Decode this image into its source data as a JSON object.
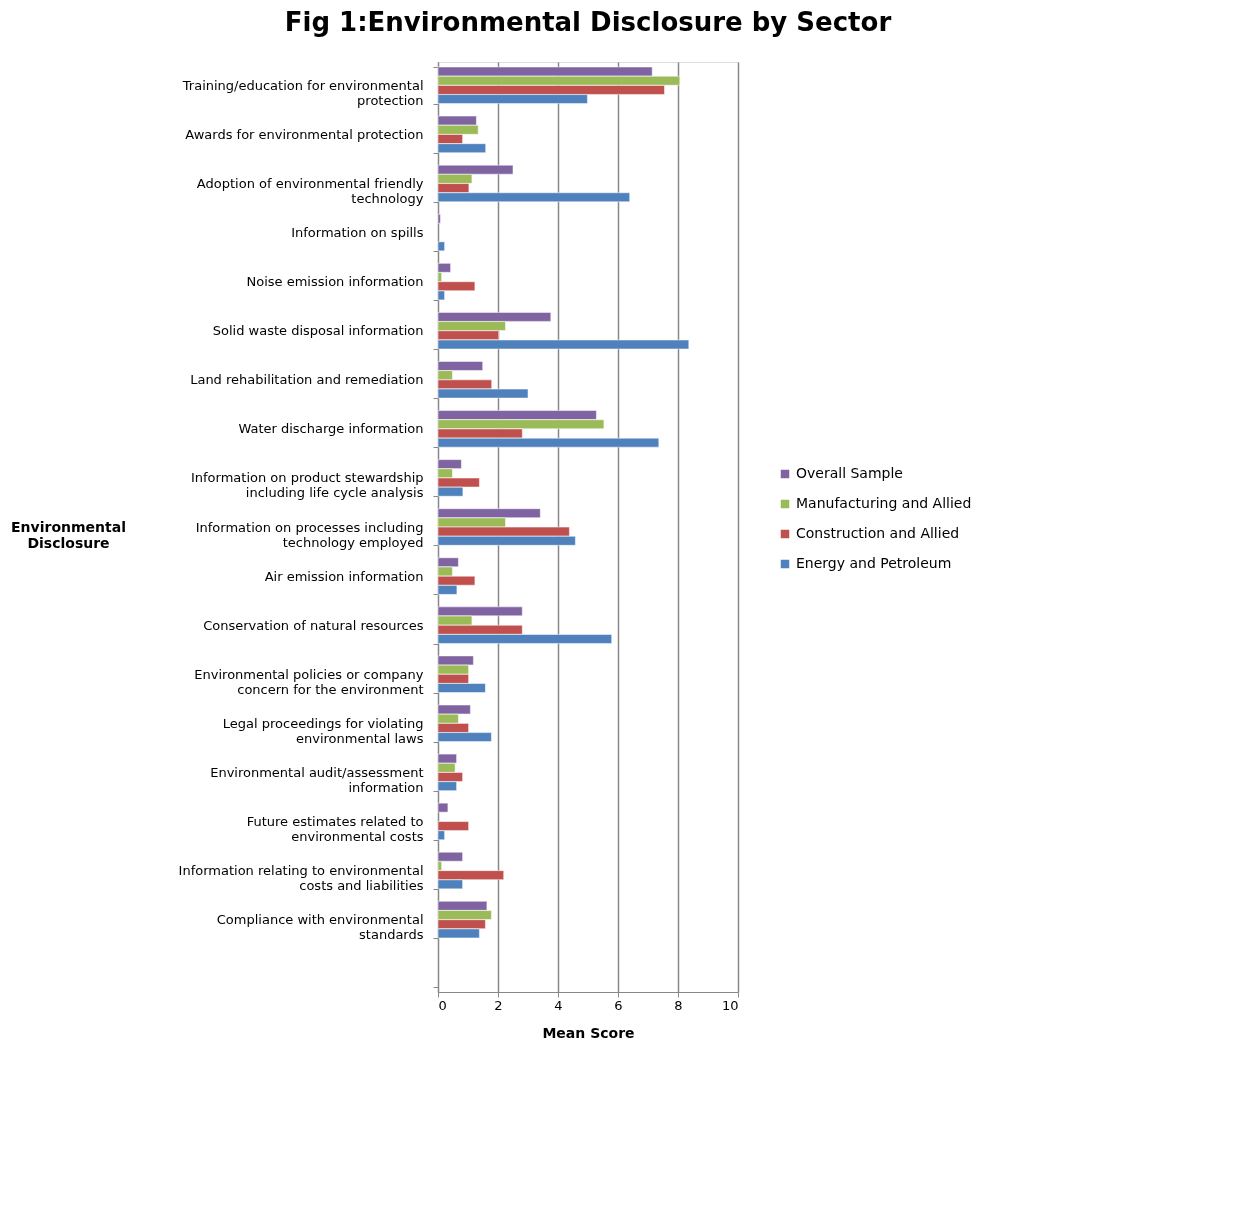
{
  "chart_data": {
    "type": "bar",
    "orientation": "horizontal",
    "title": "Fig 1:Environmental Disclosure by Sector",
    "xlabel": "Mean Score",
    "ylabel": "Environmental Disclosure",
    "categories": [
      "Training/education for environmental protection",
      "Awards for environmental protection",
      "Adoption of environmental friendly technology",
      "Information on spills",
      "Noise emission information",
      "Solid waste disposal information",
      "Land rehabilitation and remediation",
      "Water discharge information",
      "Information on product stewardship including life cycle analysis",
      "Information on processes including technology employed",
      "Air emission information",
      "Conservation of natural resources",
      "Environmental policies or company concern for the environment",
      "Legal proceedings for violating environmental laws",
      "Environmental audit/assessment information",
      "Future estimates related to environmental costs",
      "Information relating to environmental costs and liabilities",
      "Compliance with environmental standards",
      null
    ],
    "series": [
      {
        "name": "Overall Sample",
        "color": "#8064a2",
        "values": [
          7.14,
          1.28,
          2.5,
          0.08,
          0.42,
          3.76,
          1.49,
          5.28,
          0.78,
          3.41,
          0.68,
          2.81,
          1.18,
          1.08,
          0.62,
          0.33,
          0.82,
          1.63,
          null
        ]
      },
      {
        "name": "Manufacturing and Allied",
        "color": "#9bbb59",
        "values": [
          8.06,
          1.34,
          1.13,
          null,
          0.12,
          2.25,
          0.48,
          5.53,
          0.48,
          2.25,
          0.48,
          1.13,
          1.02,
          0.68,
          0.57,
          null,
          0.12,
          1.78,
          null
        ]
      },
      {
        "name": "Construction and Allied",
        "color": "#c0504d",
        "values": [
          7.55,
          0.82,
          1.03,
          null,
          1.23,
          2.02,
          1.79,
          2.81,
          1.38,
          4.38,
          1.23,
          2.81,
          1.02,
          1.02,
          0.82,
          1.02,
          2.19,
          1.58,
          null
        ]
      },
      {
        "name": "Energy and Petroleum",
        "color": "#4f81bd",
        "values": [
          4.98,
          1.59,
          6.39,
          0.22,
          0.22,
          8.36,
          3.0,
          7.36,
          0.83,
          4.58,
          0.63,
          5.79,
          1.58,
          1.78,
          0.62,
          0.22,
          0.82,
          1.38,
          null
        ]
      }
    ],
    "xlim": [
      0,
      10
    ],
    "xticks": [
      0,
      2,
      4,
      6,
      8,
      10
    ],
    "grid": "x",
    "legend": "right"
  }
}
